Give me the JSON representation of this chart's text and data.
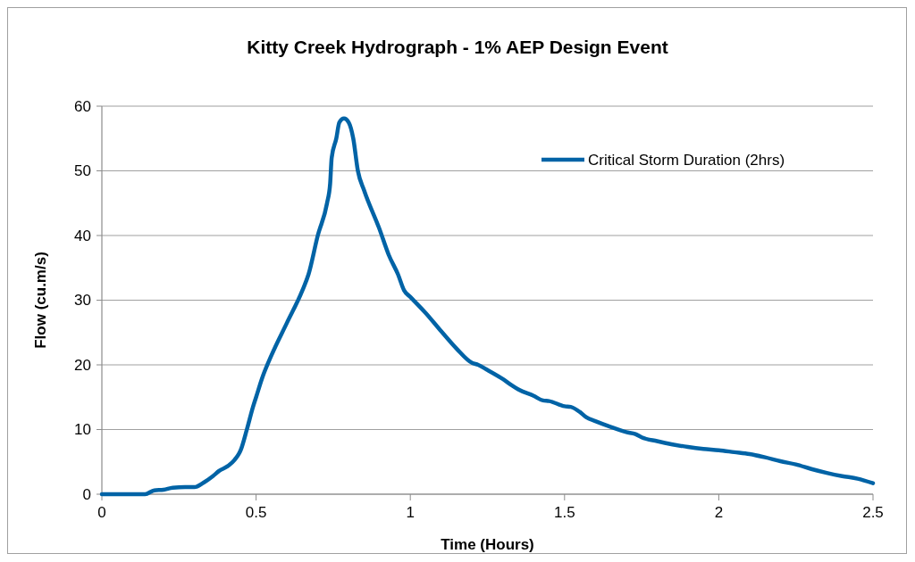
{
  "chart_data": {
    "type": "line",
    "title": "Kitty Creek Hydrograph - 1% AEP Design Event",
    "xlabel": "Time (Hours)",
    "ylabel": "Flow (cu.m/s)",
    "xlim": [
      0,
      2.5
    ],
    "xticks": [
      0,
      0.5,
      1,
      1.5,
      2,
      2.5
    ],
    "ylim": [
      0,
      60
    ],
    "yticks": [
      0,
      10,
      20,
      30,
      40,
      50,
      60
    ],
    "grid": "y",
    "legend": "top right",
    "marker": "none",
    "line_style": "solid",
    "series": [
      {
        "name": "Critical Storm Duration (2hrs)",
        "color": "#0063a6",
        "x": [
          0,
          0.1,
          0.14,
          0.17,
          0.2,
          0.23,
          0.27,
          0.3,
          0.33,
          0.36,
          0.38,
          0.41,
          0.43,
          0.45,
          0.47,
          0.49,
          0.5,
          0.52,
          0.55,
          0.6,
          0.65,
          0.67,
          0.7,
          0.73,
          0.74,
          0.745,
          0.76,
          0.77,
          0.785,
          0.8,
          0.815,
          0.83,
          0.85,
          0.9,
          0.93,
          0.96,
          0.98,
          1.0,
          1.05,
          1.1,
          1.15,
          1.2,
          1.22,
          1.25,
          1.3,
          1.33,
          1.35,
          1.4,
          1.43,
          1.45,
          1.5,
          1.52,
          1.55,
          1.57,
          1.6,
          1.65,
          1.7,
          1.73,
          1.75,
          1.8,
          1.85,
          1.9,
          1.95,
          2.0,
          2.05,
          2.1,
          2.15,
          2.2,
          2.25,
          2.3,
          2.35,
          2.4,
          2.45,
          2.5
        ],
        "values": [
          0,
          0,
          0,
          0.6,
          0.7,
          1.0,
          1.1,
          1.1,
          1.8,
          2.8,
          3.6,
          4.4,
          5.3,
          6.8,
          10,
          13.5,
          15,
          18,
          21.5,
          26.5,
          31.5,
          34,
          40,
          45,
          48,
          52,
          55,
          57.5,
          58.1,
          57.5,
          55,
          50,
          47,
          41,
          37,
          34,
          31.5,
          30.5,
          28,
          25.2,
          22.5,
          20.3,
          20,
          19.2,
          17.8,
          16.8,
          16.2,
          15.2,
          14.5,
          14.4,
          13.6,
          13.5,
          12.7,
          11.9,
          11.3,
          10.4,
          9.6,
          9.3,
          8.8,
          8.2,
          7.7,
          7.3,
          7.0,
          6.8,
          6.5,
          6.2,
          5.7,
          5.1,
          4.6,
          3.9,
          3.3,
          2.8,
          2.4,
          1.7
        ]
      }
    ]
  }
}
